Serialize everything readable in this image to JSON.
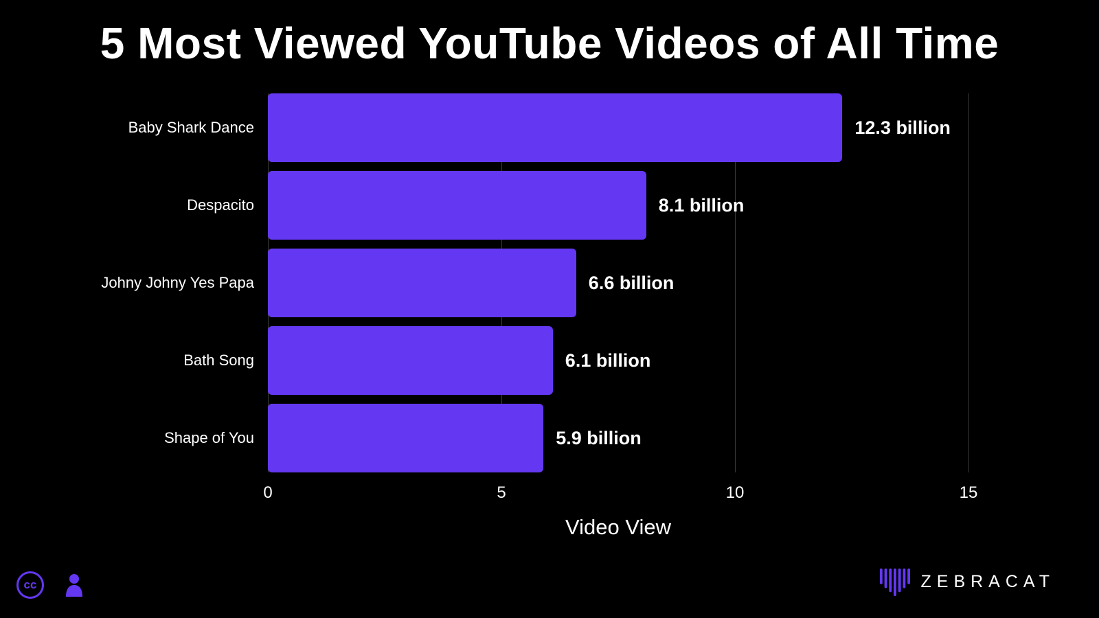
{
  "title": "5 Most Viewed YouTube Videos of All Time",
  "chart_data": {
    "type": "bar",
    "orientation": "horizontal",
    "categories": [
      "Baby Shark Dance",
      "Despacito",
      "Johny Johny Yes Papa",
      "Bath Song",
      "Shape of You"
    ],
    "values": [
      12.3,
      8.1,
      6.6,
      6.1,
      5.9
    ],
    "value_labels": [
      "12.3 billion",
      "8.1 billion",
      "6.6 billion",
      "6.1 billion",
      "5.9 billion"
    ],
    "xlabel": "Video View",
    "xlim": [
      0,
      15
    ],
    "xticks": [
      0,
      5,
      10,
      15
    ],
    "bar_color": "#6438f2",
    "background": "#000000",
    "grid": true,
    "legend": false
  },
  "footer": {
    "cc_label": "cc",
    "brand": "ZEBRACAT",
    "accent_color": "#6438f2"
  }
}
